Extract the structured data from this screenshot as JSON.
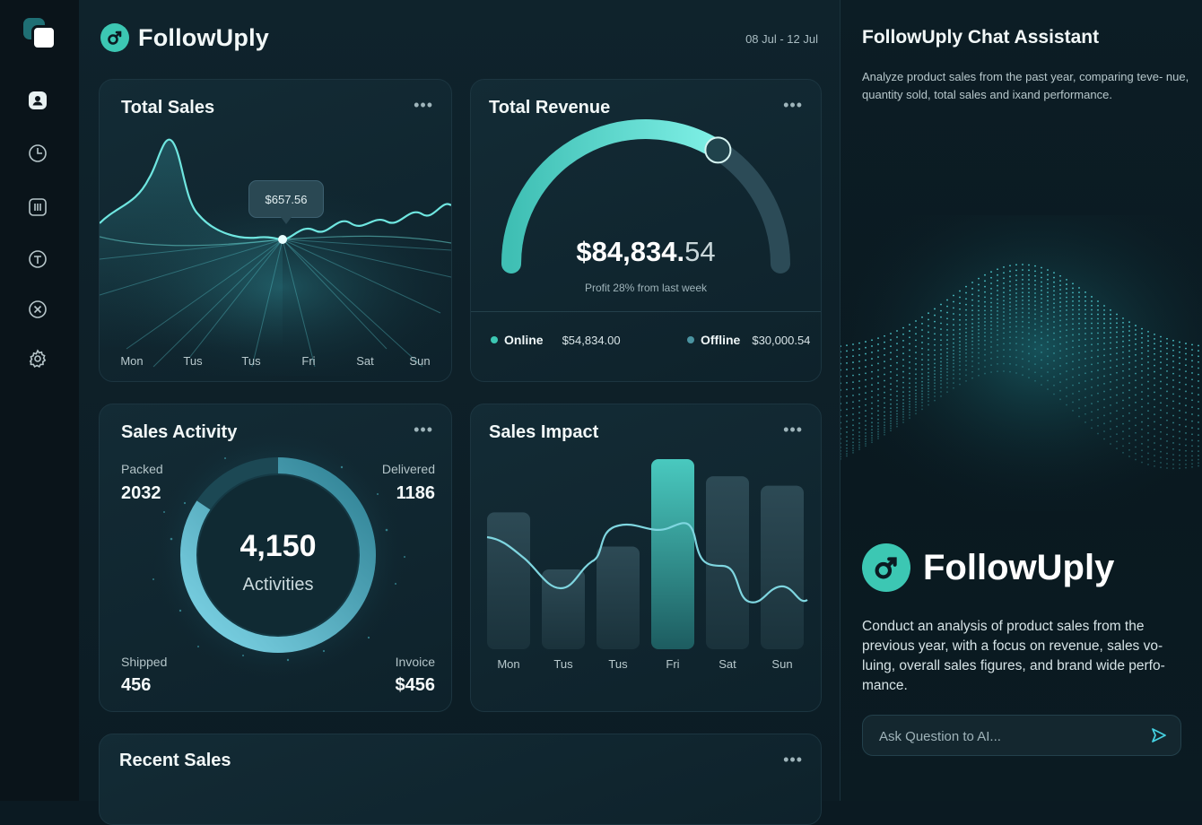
{
  "app": {
    "name": "FollowUply",
    "date_range": "08 Jul - 12 Jul"
  },
  "sidebar": {
    "items": [
      {
        "icon": "user-icon"
      },
      {
        "icon": "clock-icon"
      },
      {
        "icon": "chart-icon"
      },
      {
        "icon": "text-icon"
      },
      {
        "icon": "close-circle-icon"
      },
      {
        "icon": "gear-icon"
      }
    ]
  },
  "total_sales": {
    "title": "Total Sales",
    "menu": "•••",
    "tooltip": "$657.56",
    "days": [
      "Mon",
      "Tus",
      "Tus",
      "Fri",
      "Sat",
      "Sun"
    ]
  },
  "total_revenue": {
    "title": "Total Revenue",
    "menu": "•••",
    "amount_main": "$84,834.",
    "amount_cents": "54",
    "note": "Profit 28% from last week",
    "gauge_fraction": 0.68,
    "online_label": "Online",
    "online_value": "$54,834.00",
    "offline_label": "Offline",
    "offline_value": "$30,000.54"
  },
  "sales_activity": {
    "title": "Sales Activity",
    "menu": "•••",
    "packed_label": "Packed",
    "packed_value": "2032",
    "delivered_label": "Delivered",
    "delivered_value": "1186",
    "shipped_label": "Shipped",
    "shipped_value": "456",
    "invoice_label": "Invoice",
    "invoice_value": "$456",
    "total": "4,150",
    "total_label": "Activities"
  },
  "sales_impact": {
    "title": "Sales Impact",
    "menu": "•••",
    "days": [
      "Mon",
      "Tus",
      "Tus",
      "Fri",
      "Sat",
      "Sun"
    ]
  },
  "recent_sales": {
    "title": "Recent Sales",
    "menu": "•••"
  },
  "chat": {
    "title": "FollowUply Chat Assistant",
    "description": "Analyze product sales from the past year, comparing teve- nue, quantity sold, total sales and ixand performance.",
    "brand": "FollowUply",
    "body": "Conduct an analysis of product sales from the previous year, with a focus on revenue, sales vo- luing, overall sales figures, and brand wide perfo- mance.",
    "placeholder": "Ask Question to AI..."
  },
  "chart_data": [
    {
      "type": "line",
      "title": "Total Sales",
      "categories": [
        "Mon",
        "Tus",
        "Tus",
        "Fri",
        "Sat",
        "Sun"
      ],
      "annotation": "$657.56"
    },
    {
      "type": "bar",
      "title": "Sales Impact",
      "categories": [
        "Mon",
        "Tus",
        "Tus",
        "Fri",
        "Sat",
        "Sun"
      ],
      "values": [
        72,
        42,
        54,
        100,
        91,
        86
      ]
    }
  ],
  "colors": {
    "accent": "#3cc7b3",
    "background": "#0b1a22",
    "teal_line": "#6fe6e0"
  }
}
